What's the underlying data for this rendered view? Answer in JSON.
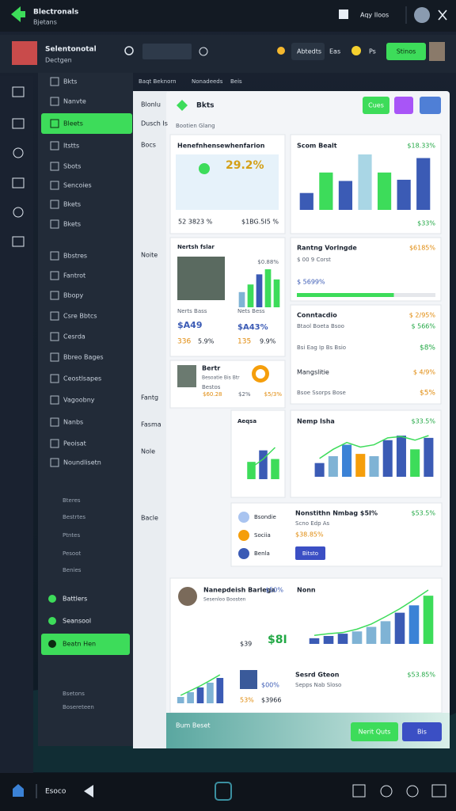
{
  "topbar": {
    "brand": "Blectronals",
    "sub": "Bjetans",
    "user": "Aqy Iloos"
  },
  "header": {
    "name": "Selentonotal",
    "role": "Dectgen",
    "tabs": [
      "Abtedts",
      "Eas",
      "Ps"
    ],
    "button": "Stinos"
  },
  "sidebar": {
    "items": [
      "Bkts",
      "Nanvte",
      "Bleets",
      "Itstts",
      "Sbots",
      "Sencoies",
      "Bkets",
      "Bkets",
      "Bbstres",
      "Fantrot",
      "Bbopy",
      "Csre Bbtcs",
      "Cesrda",
      "Bbreo Bages",
      "Ceostlsapes",
      "Vagoobny",
      "Nanbs",
      "Peoisat",
      "Noundlisetn"
    ],
    "sub": [
      "Bteres",
      "Bestrtes",
      "Ptntes",
      "Pesoot",
      "Benies"
    ],
    "bottom": [
      "Battlers",
      "Seansool",
      "Beatn Hen"
    ],
    "footer": [
      "Bsetons",
      "Bosereteen"
    ]
  },
  "breadcrumb": [
    "Baqt Beknorn",
    "Nonadeeds",
    "Beis"
  ],
  "bg_panel": [
    "Blonlu",
    "Dusch Is",
    "Bocs",
    "Noite",
    "Fantg",
    "Fasma",
    "Nole",
    "Bacle"
  ],
  "panel": {
    "title": "Bkts",
    "subtitle": "Bootien Glang",
    "button": "Cues",
    "footer": "Bum Beset",
    "actions": [
      "Nerit Quts",
      "Bis"
    ]
  },
  "cards": [
    {
      "title": "Henefnhensewhenfarion",
      "value": "29.2%",
      "foot": [
        "52 3823 %",
        "$1BG.5I5 %"
      ]
    },
    {
      "title": "Scom Bealt",
      "value": "$18.33%",
      "foot": "$33%"
    },
    {
      "title": "Nertsh fslar",
      "value": "$0.88%",
      "stats": [
        "Nerts Bass",
        "$A49",
        "336",
        "5.9%",
        "Nets Bess",
        "$A43%",
        "135",
        "9.9%"
      ]
    },
    {
      "title": "Rantng Vorlngde",
      "value": "$6185%",
      "sub": "$ 00 9 Corst",
      "stat": "$ 5699%"
    },
    {
      "title": "Conntacdio",
      "value": "$ 2/95%",
      "rows": [
        "Btaol Boeta Bsoo",
        "$ 566%",
        "Bsi Eag Ip Bs Bsio",
        "$8%",
        "Mangslitie",
        "$ 4/9%",
        "Bsoe Ssorps Bose",
        "$5%"
      ]
    },
    {
      "title": "Bertr",
      "sub": "Besoatie Bis Btr",
      "rows": [
        "Bestos",
        "$60.28",
        "$2%",
        "$5/3%"
      ]
    },
    {
      "title": "Aeqsa"
    },
    {
      "title": "Nemp Isha",
      "value": "$33.5%"
    },
    {
      "legend": [
        "Bsondie",
        "Sociia",
        "Benla"
      ],
      "title": "Nonstithn Nmbag $5I%",
      "value": "$53.5%",
      "sub": "Scno Edp As",
      "amount": "$38.85%",
      "button": "Bitsto"
    },
    {
      "title": "Nanepdeish Barlega",
      "value": "$50%",
      "sub": "Sesenloo Boosten",
      "amount": "$39",
      "amount2": "$8I",
      "chart_title": "Nonn",
      "note": "Sesrd Gteon",
      "note_value": "$53.85%",
      "sub2": "Sepps Nab Sloso",
      "pct": "$00%",
      "row": [
        "53%",
        "$3966"
      ]
    }
  ],
  "charts": [
    {
      "values": [
        28,
        62,
        48,
        92,
        62,
        50,
        86
      ],
      "colors": [
        "#3b5bb5",
        "#3ddc5a",
        "#3b5bb5",
        "#a9d6e5",
        "#3ddc5a",
        "#3b5bb5",
        "#3b5bb5"
      ]
    },
    {
      "values": [
        30,
        45,
        65,
        75,
        55
      ],
      "colors": [
        "#7fb3d5",
        "#3ddc5a",
        "#3b5bb5",
        "#3ddc5a",
        "#3ddc5a"
      ]
    },
    {
      "values": [
        30,
        50,
        35
      ],
      "colors": [
        "#3ddc5a",
        "#3b5bb5",
        "#3ddc5a"
      ],
      "line": [
        20,
        35,
        55
      ]
    },
    {
      "values": [
        30,
        45,
        70,
        50,
        45,
        80,
        90,
        60,
        85
      ],
      "colors": [
        "#3b5bb5",
        "#7fb3d5",
        "#3b82d6",
        "#f59e0b",
        "#7fb3d5",
        "#3b5bb5",
        "#3b5bb5",
        "#3ddc5a",
        "#3b5bb5"
      ],
      "line": [
        40,
        60,
        75,
        65,
        70,
        85,
        88,
        80,
        90
      ]
    },
    {
      "values": [
        10,
        14,
        18,
        22,
        30,
        40,
        55,
        68,
        85
      ],
      "colors": [
        "#3b5bb5",
        "#3b5bb5",
        "#3b5bb5",
        "#7fb3d5",
        "#7fb3d5",
        "#7fb3d5",
        "#3b5bb5",
        "#3b82d6",
        "#3ddc5a"
      ],
      "line": [
        15,
        18,
        20,
        26,
        35,
        48,
        62,
        78,
        95
      ]
    },
    {
      "values": [
        20,
        35,
        50,
        65,
        80
      ],
      "colors": [
        "#7fb3d5",
        "#7fb3d5",
        "#3b5bb5",
        "#7fb3d5",
        "#3b5bb5"
      ],
      "line": [
        25,
        40,
        55,
        72,
        90
      ]
    }
  ],
  "progress": 70,
  "nav": {
    "label": "Esoco"
  }
}
